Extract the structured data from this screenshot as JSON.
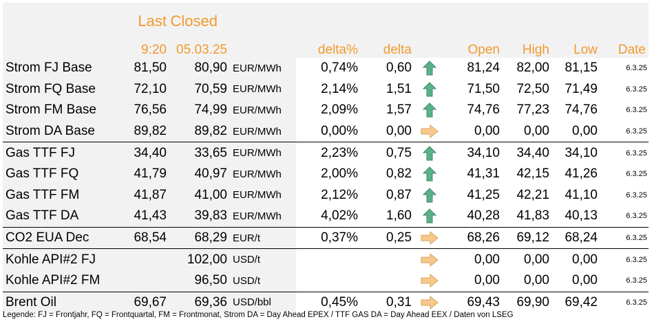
{
  "header": {
    "last_label": "Last",
    "closed_label": "Closed",
    "last_time": "9:20",
    "closed_date": "05.03.25",
    "delta_pct_label": "delta%",
    "delta_label": "delta",
    "open_label": "Open",
    "high_label": "High",
    "low_label": "Low",
    "date_label": "Date"
  },
  "colors": {
    "header_text": "#f29a2e",
    "band_bg": "#f2f2f2",
    "arrow_up": "#5bb08a",
    "arrow_right": "#f6c98a"
  },
  "rows": [
    {
      "name": "Strom FJ Base",
      "last": "81,50",
      "closed": "80,90",
      "unit": "EUR/MWh",
      "delta_pct": "0,74%",
      "delta": "0,60",
      "arrow": "arrow-up-icon",
      "open": "81,24",
      "high": "82,00",
      "low": "81,15",
      "date": "6.3.25"
    },
    {
      "name": "Strom FQ Base",
      "last": "72,10",
      "closed": "70,59",
      "unit": "EUR/MWh",
      "delta_pct": "2,14%",
      "delta": "1,51",
      "arrow": "arrow-up-icon",
      "open": "71,50",
      "high": "72,50",
      "low": "71,49",
      "date": "6.3.25"
    },
    {
      "name": "Strom FM Base",
      "last": "76,56",
      "closed": "74,99",
      "unit": "EUR/MWh",
      "delta_pct": "2,09%",
      "delta": "1,57",
      "arrow": "arrow-up-icon",
      "open": "74,76",
      "high": "77,23",
      "low": "74,76",
      "date": "6.3.25"
    },
    {
      "name": "Strom DA Base",
      "last": "89,82",
      "closed": "89,82",
      "unit": "EUR/MWh",
      "delta_pct": "0,00%",
      "delta": "0,00",
      "arrow": "arrow-right-icon",
      "open": "0,00",
      "high": "0,00",
      "low": "0,00",
      "date": "6.3.25"
    },
    {
      "name": "Gas TTF FJ",
      "last": "34,40",
      "closed": "33,65",
      "unit": "EUR/MWh",
      "delta_pct": "2,23%",
      "delta": "0,75",
      "arrow": "arrow-up-icon",
      "open": "34,10",
      "high": "34,40",
      "low": "34,10",
      "date": "6.3.25"
    },
    {
      "name": "Gas TTF FQ",
      "last": "41,79",
      "closed": "40,97",
      "unit": "EUR/MWh",
      "delta_pct": "2,00%",
      "delta": "0,82",
      "arrow": "arrow-up-icon",
      "open": "41,31",
      "high": "42,15",
      "low": "41,26",
      "date": "6.3.25"
    },
    {
      "name": "Gas TTF FM",
      "last": "41,87",
      "closed": "41,00",
      "unit": "EUR/MWh",
      "delta_pct": "2,12%",
      "delta": "0,87",
      "arrow": "arrow-up-icon",
      "open": "41,25",
      "high": "42,21",
      "low": "41,10",
      "date": "6.3.25"
    },
    {
      "name": "Gas TTF DA",
      "last": "41,43",
      "closed": "39,83",
      "unit": "EUR/MWh",
      "delta_pct": "4,02%",
      "delta": "1,60",
      "arrow": "arrow-up-icon",
      "open": "40,28",
      "high": "41,83",
      "low": "40,13",
      "date": "6.3.25"
    },
    {
      "name": "CO2 EUA Dec",
      "last": "68,54",
      "closed": "68,29",
      "unit": "EUR/t",
      "delta_pct": "0,37%",
      "delta": "0,25",
      "arrow": "arrow-right-icon",
      "open": "68,26",
      "high": "69,12",
      "low": "68,24",
      "date": "6.3.25"
    },
    {
      "name": "Kohle API#2 FJ",
      "last": "",
      "closed": "102,00",
      "unit": "USD/t",
      "delta_pct": "",
      "delta": "",
      "arrow": "arrow-right-icon",
      "open": "0,00",
      "high": "0,00",
      "low": "0,00",
      "date": "6.3.25"
    },
    {
      "name": "Kohle API#2 FM",
      "last": "",
      "closed": "96,50",
      "unit": "USD/t",
      "delta_pct": "",
      "delta": "",
      "arrow": "arrow-right-icon",
      "open": "0,00",
      "high": "0,00",
      "low": "0,00",
      "date": "6.3.25"
    },
    {
      "name": "Brent Oil",
      "last": "69,67",
      "closed": "69,36",
      "unit": "USD/bbl",
      "delta_pct": "0,45%",
      "delta": "0,31",
      "arrow": "arrow-right-icon",
      "open": "69,43",
      "high": "69,90",
      "low": "69,42",
      "date": "6.3.25"
    }
  ],
  "legend": "Legende: FJ = Frontjahr, FQ = Frontquartal, FM = Frontmonat, Strom DA = Day Ahead EPEX / TTF GAS DA = Day Ahead EEX / Daten von LSEG"
}
